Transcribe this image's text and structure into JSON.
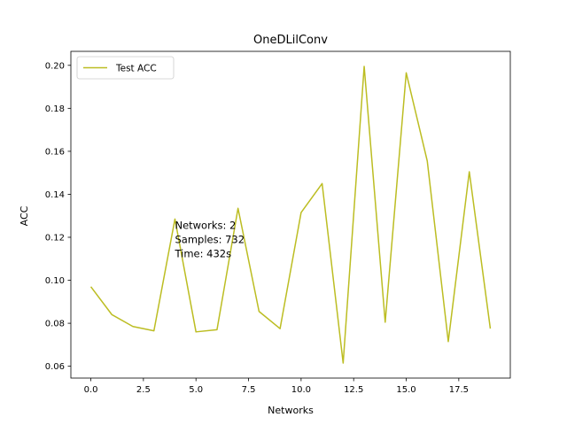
{
  "chart_data": {
    "type": "line",
    "title": "OneDLilConv",
    "xlabel": "Networks",
    "ylabel": "ACC",
    "xlim": [
      -0.95,
      19.95
    ],
    "ylim": [
      0.0545,
      0.2065
    ],
    "xticks": [
      0.0,
      2.5,
      5.0,
      7.5,
      10.0,
      12.5,
      15.0,
      17.5
    ],
    "xtick_labels": [
      "0.0",
      "2.5",
      "5.0",
      "7.5",
      "10.0",
      "12.5",
      "15.0",
      "17.5"
    ],
    "yticks": [
      0.06,
      0.08,
      0.1,
      0.12,
      0.14,
      0.16,
      0.18,
      0.2
    ],
    "ytick_labels": [
      "0.06",
      "0.08",
      "0.10",
      "0.12",
      "0.14",
      "0.16",
      "0.18",
      "0.20"
    ],
    "grid": false,
    "legend_position": "top-left",
    "series": [
      {
        "name": "Test ACC",
        "color": "#bcbd22",
        "x": [
          0,
          1,
          2,
          3,
          4,
          5,
          6,
          7,
          8,
          9,
          10,
          11,
          12,
          13,
          14,
          15,
          16,
          17,
          18,
          19
        ],
        "values": [
          0.097,
          0.084,
          0.0785,
          0.0765,
          0.1285,
          0.076,
          0.077,
          0.1335,
          0.0855,
          0.0775,
          0.1315,
          0.145,
          0.0615,
          0.1995,
          0.0805,
          0.1965,
          0.1555,
          0.0715,
          0.1505,
          0.0775
        ]
      }
    ],
    "annotation": {
      "lines": [
        "Networks: 2",
        "Samples: 732",
        "Time: 432s"
      ],
      "x": 4.0,
      "y": 0.124
    }
  }
}
